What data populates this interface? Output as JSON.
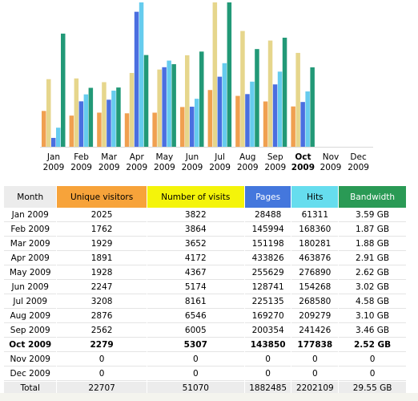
{
  "chart": {
    "months": [
      {
        "label": "Jan",
        "year": "2009"
      },
      {
        "label": "Feb",
        "year": "2009"
      },
      {
        "label": "Mar",
        "year": "2009"
      },
      {
        "label": "Apr",
        "year": "2009"
      },
      {
        "label": "May",
        "year": "2009"
      },
      {
        "label": "Jun",
        "year": "2009"
      },
      {
        "label": "Jul",
        "year": "2009"
      },
      {
        "label": "Aug",
        "year": "2009"
      },
      {
        "label": "Sep",
        "year": "2009"
      },
      {
        "label": "Oct",
        "year": "2009"
      },
      {
        "label": "Nov",
        "year": "2009"
      },
      {
        "label": "Dec",
        "year": "2009"
      }
    ],
    "highlight": 9,
    "colors": [
      "#f0a050",
      "#e6d68c",
      "#4a6fe0",
      "#66ccee",
      "#229977"
    ]
  },
  "table": {
    "headers": [
      {
        "text": "Month",
        "color": "#ececec"
      },
      {
        "text": "Unique visitors",
        "color": "#f7a33a"
      },
      {
        "text": "Number of visits",
        "color": "#f4f40a"
      },
      {
        "text": "Pages",
        "color": "#4477dd"
      },
      {
        "text": "Hits",
        "color": "#66ddee"
      },
      {
        "text": "Bandwidth",
        "color": "#2a9a55"
      }
    ],
    "rows": [
      [
        "Jan 2009",
        2025,
        3822,
        28488,
        61311,
        {
          "value": 3.59,
          "label": "3.59 GB"
        }
      ],
      [
        "Feb 2009",
        1762,
        3864,
        145994,
        168360,
        {
          "value": 1.87,
          "label": "1.87 GB"
        }
      ],
      [
        "Mar 2009",
        1929,
        3652,
        151198,
        180281,
        {
          "value": 1.88,
          "label": "1.88 GB"
        }
      ],
      [
        "Apr 2009",
        1891,
        4172,
        433826,
        463876,
        {
          "value": 2.91,
          "label": "2.91 GB"
        }
      ],
      [
        "May 2009",
        1928,
        4367,
        255629,
        276890,
        {
          "value": 2.62,
          "label": "2.62 GB"
        }
      ],
      [
        "Jun 2009",
        2247,
        5174,
        128741,
        154268,
        {
          "value": 3.02,
          "label": "3.02 GB"
        }
      ],
      [
        "Jul 2009",
        3208,
        8161,
        225135,
        268580,
        {
          "value": 4.58,
          "label": "4.58 GB"
        }
      ],
      [
        "Aug 2009",
        2876,
        6546,
        169270,
        209279,
        {
          "value": 3.1,
          "label": "3.10 GB"
        }
      ],
      [
        "Sep 2009",
        2562,
        6005,
        200354,
        241426,
        {
          "value": 3.46,
          "label": "3.46 GB"
        }
      ],
      [
        "Oct 2009",
        2279,
        5307,
        143850,
        177838,
        {
          "value": 2.52,
          "label": "2.52 GB"
        }
      ],
      [
        "Nov 2009",
        0,
        0,
        0,
        0,
        0
      ],
      [
        "Dec 2009",
        0,
        0,
        0,
        0,
        0
      ]
    ],
    "total": [
      "Total",
      22707,
      51070,
      1882485,
      2202109,
      {
        "value": 29.55,
        "label": "29.55 GB"
      }
    ]
  }
}
